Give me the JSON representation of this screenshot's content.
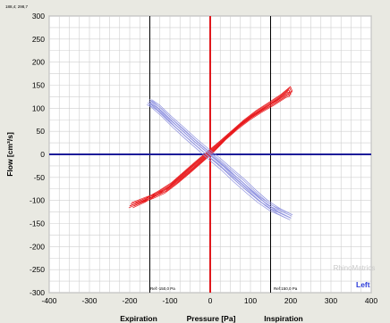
{
  "chart_data": {
    "type": "line",
    "readout": "188,4; 298,7",
    "ylabel": "Flow [cm³/s]",
    "xlabel_left": "Expiration",
    "xlabel_center": "Pressure [Pa]",
    "xlabel_right": "Inspiration",
    "watermark": "RhinoMatrics",
    "side_label": "Left",
    "ref_label_left": "Ref:-150,0 Pa",
    "ref_label_right": "Ref:150,0 Pa",
    "xlim": [
      -400,
      400
    ],
    "ylim": [
      -300,
      300
    ],
    "xticks": [
      -400,
      -300,
      -200,
      -100,
      0,
      100,
      200,
      300,
      400
    ],
    "yticks": [
      -300,
      -250,
      -200,
      -150,
      -100,
      -50,
      0,
      50,
      100,
      150,
      200,
      250,
      300
    ],
    "grid": true,
    "reference_lines_x": [
      -150,
      150
    ],
    "colors": {
      "red_curve": "#e8191c",
      "blue_curve": "#8f92e0",
      "x_axis": "#1c1c99",
      "y_axis": "#e0181c",
      "reference": "#000000",
      "grid": "#cfcfcf",
      "side_label": "#2a3ad8",
      "watermark": "#c8c8c8"
    },
    "series": [
      {
        "color": "red",
        "values": [
          [
            -190,
            -112
          ],
          [
            -160,
            -100
          ],
          [
            -130,
            -85
          ],
          [
            -100,
            -68
          ],
          [
            -70,
            -45
          ],
          [
            -40,
            -22
          ],
          [
            -10,
            0
          ],
          [
            20,
            22
          ],
          [
            50,
            45
          ],
          [
            80,
            68
          ],
          [
            110,
            88
          ],
          [
            140,
            105
          ],
          [
            170,
            122
          ],
          [
            195,
            140
          ],
          [
            200,
            130
          ],
          [
            190,
            127
          ],
          [
            160,
            110
          ],
          [
            130,
            95
          ],
          [
            100,
            78
          ],
          [
            70,
            58
          ],
          [
            40,
            35
          ],
          [
            10,
            8
          ],
          [
            -20,
            -15
          ],
          [
            -50,
            -38
          ],
          [
            -80,
            -60
          ],
          [
            -110,
            -80
          ],
          [
            -140,
            -92
          ],
          [
            -165,
            -100
          ],
          [
            -200,
            -112
          ]
        ]
      },
      {
        "color": "blue",
        "values": [
          [
            -150,
            112
          ],
          [
            -130,
            100
          ],
          [
            -100,
            75
          ],
          [
            -70,
            52
          ],
          [
            -40,
            28
          ],
          [
            -10,
            6
          ],
          [
            20,
            -15
          ],
          [
            50,
            -38
          ],
          [
            80,
            -60
          ],
          [
            110,
            -85
          ],
          [
            140,
            -108
          ],
          [
            170,
            -125
          ],
          [
            200,
            -138
          ],
          [
            180,
            -130
          ],
          [
            150,
            -118
          ],
          [
            120,
            -100
          ],
          [
            90,
            -78
          ],
          [
            60,
            -55
          ],
          [
            30,
            -30
          ],
          [
            0,
            -8
          ],
          [
            -30,
            15
          ],
          [
            -60,
            38
          ],
          [
            -90,
            62
          ],
          [
            -120,
            88
          ],
          [
            -145,
            107
          ],
          [
            -155,
            112
          ]
        ]
      }
    ]
  }
}
